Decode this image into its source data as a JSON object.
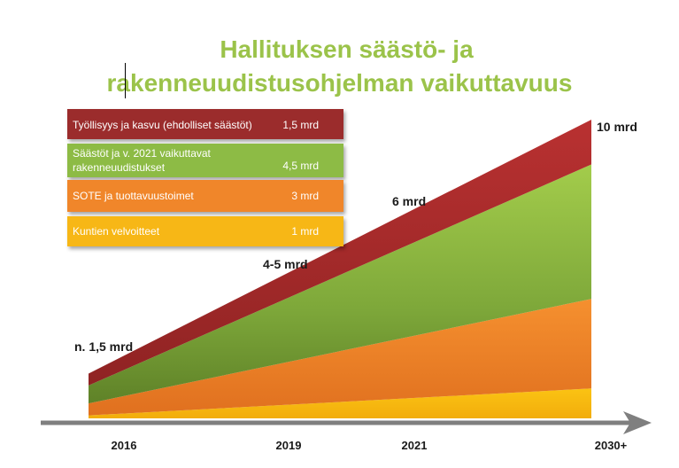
{
  "title": {
    "line1": "Hallituksen säästö- ja",
    "line2": "rakenneuudistusohjelman vaikuttavuus"
  },
  "colors": {
    "title": "#9bc34a",
    "tyollisyys": "#9b2c2c",
    "saastot": "#8dbb45",
    "sote": "#f0862a",
    "kunnat": "#f7b716",
    "axis": "#7f7f7f"
  },
  "legend": [
    {
      "label": "Työllisyys ja kasvu  (ehdolliset säästöt)",
      "value": "1,5 mrd"
    },
    {
      "label": "Säästöt ja v. 2021 vaikuttavat rakenneuudistukset",
      "value": "4,5 mrd"
    },
    {
      "label": "SOTE ja tuottavuustoimet",
      "value": "3 mrd"
    },
    {
      "label": "Kuntien velvoitteet",
      "value": "1 mrd"
    }
  ],
  "chart_data": {
    "type": "area",
    "stacked": true,
    "categories": [
      "2016",
      "2019",
      "2021",
      "2030+"
    ],
    "series": [
      {
        "name": "Kuntien velvoitteet",
        "start": 0.1,
        "end": 1
      },
      {
        "name": "SOTE ja tuottavuustoimet",
        "start": 0.4,
        "end": 3
      },
      {
        "name": "Säästöt ja v. 2021 vaikuttavat rakenneuudistukset",
        "start": 0.6,
        "end": 4.5
      },
      {
        "name": "Työllisyys ja kasvu  (ehdolliset säästöt)",
        "start": 0.4,
        "end": 1.5
      }
    ],
    "annotations": [
      "n. 1,5 mrd",
      "4-5 mrd",
      "6 mrd",
      "10 mrd"
    ],
    "ylim": [
      0,
      10
    ]
  }
}
